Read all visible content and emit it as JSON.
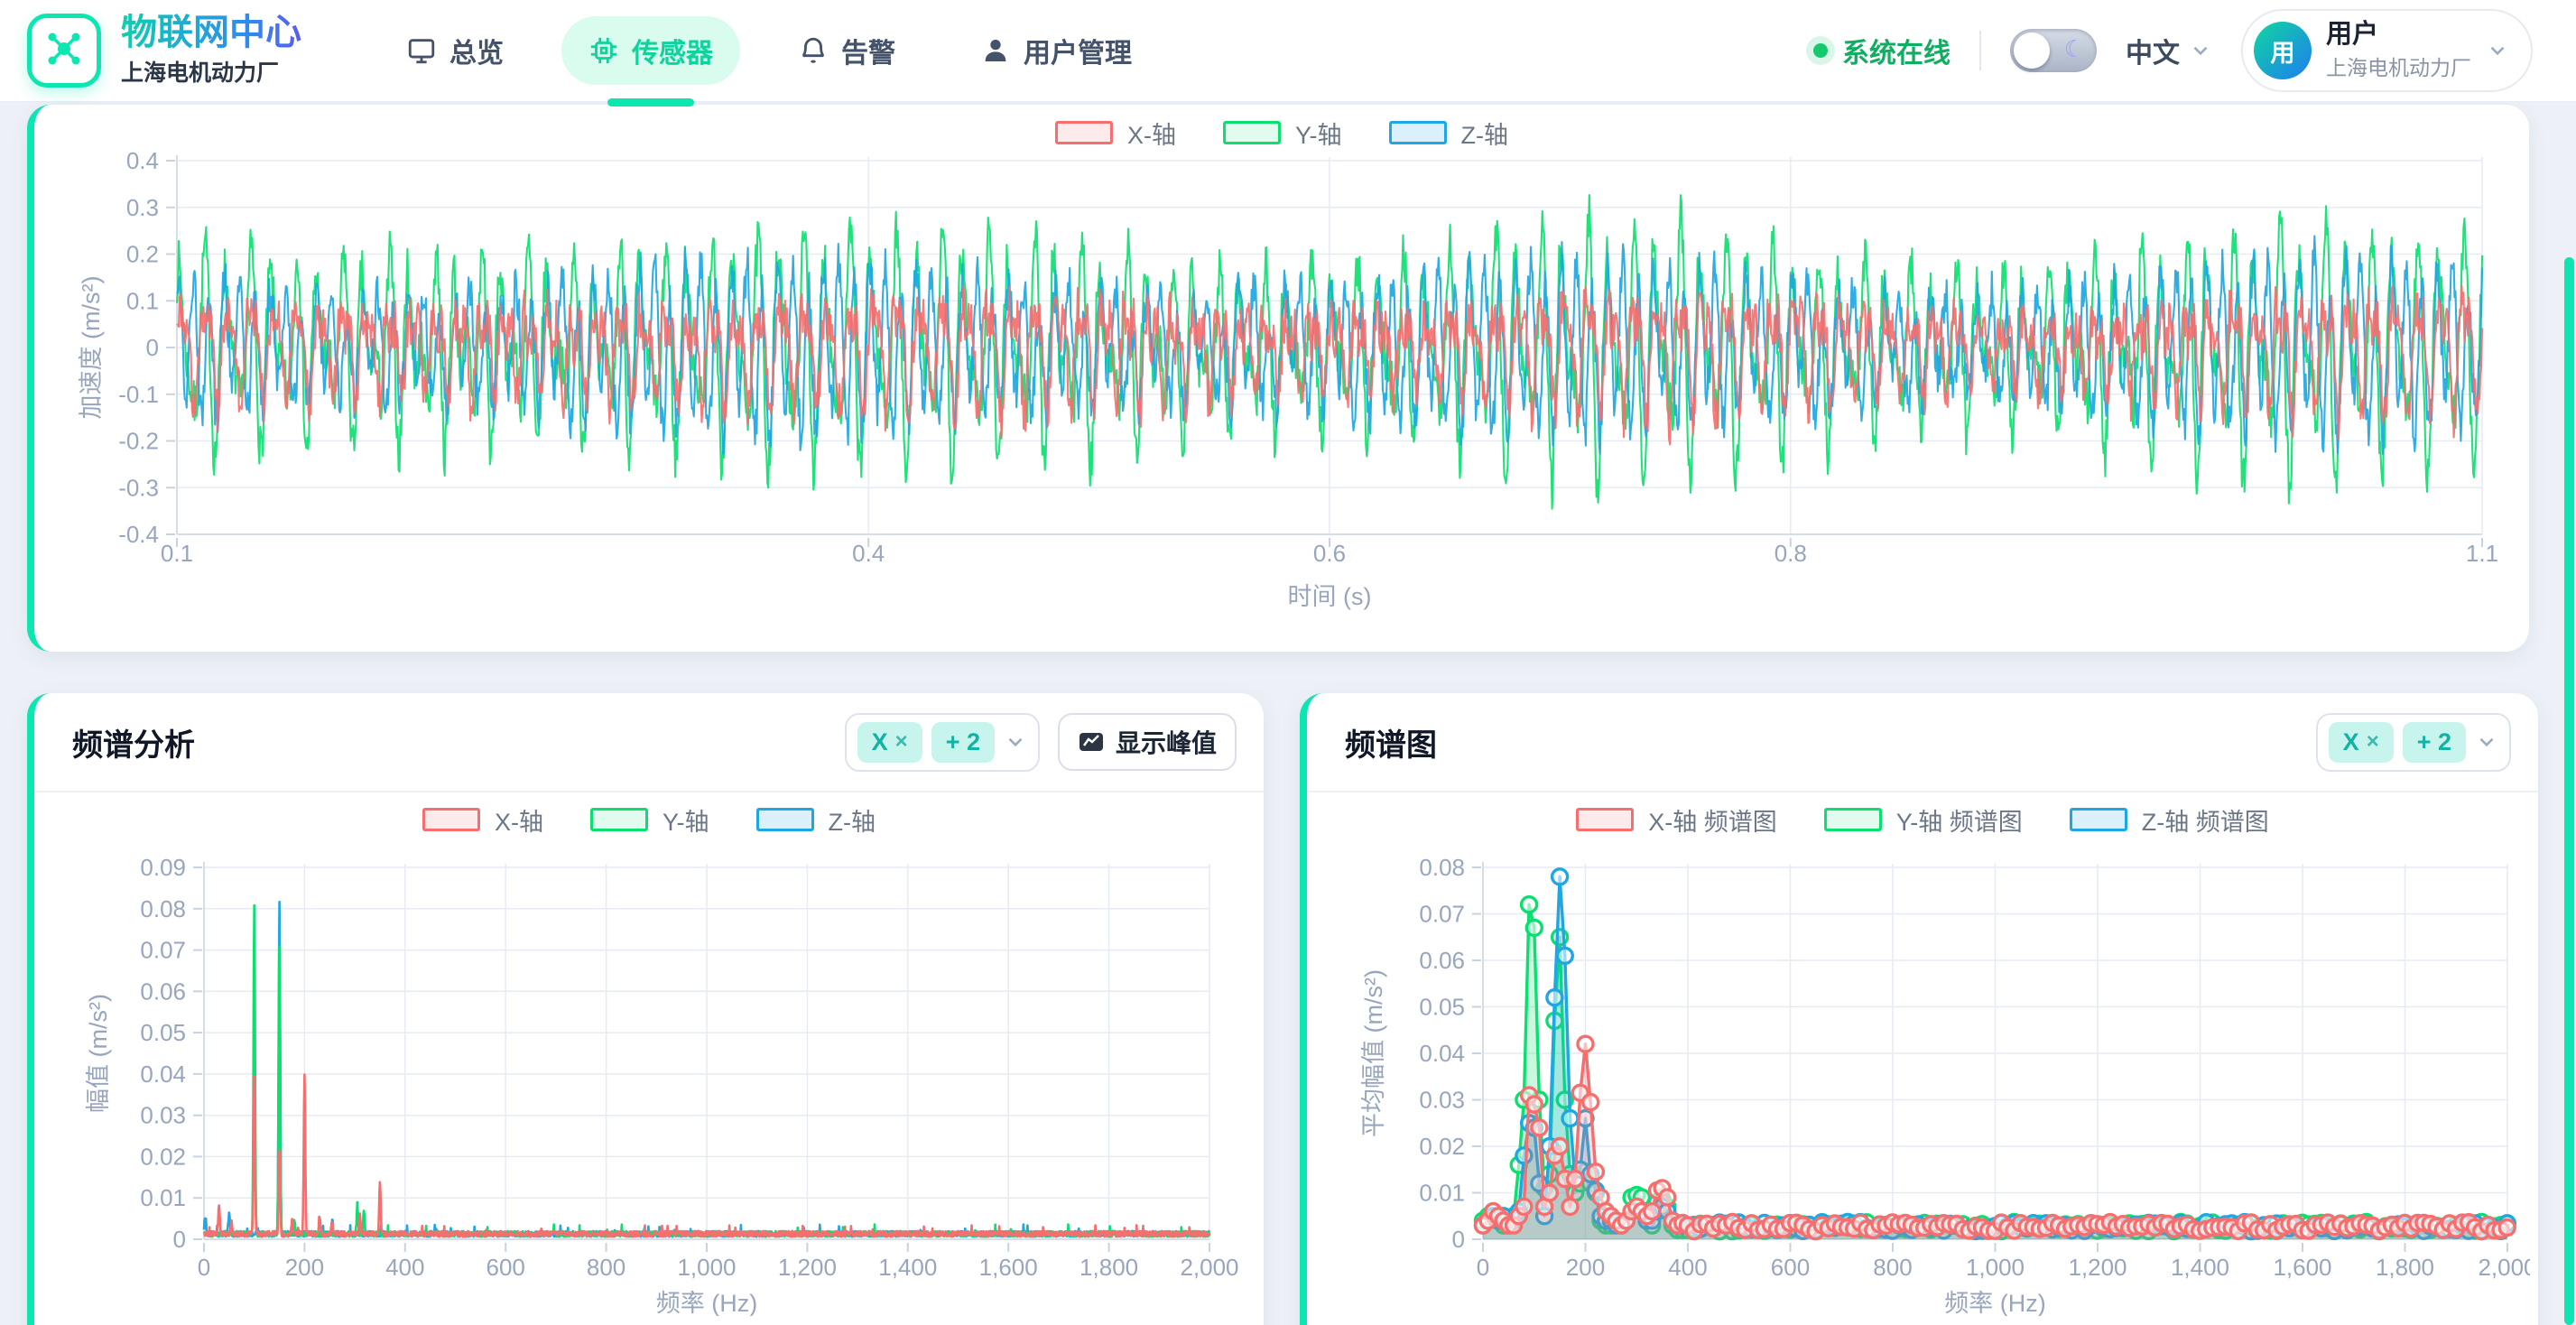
{
  "theme": {
    "accent": "#0ce7b2",
    "status_green": "#14c96e",
    "axis_text": "#98a6bd",
    "grid": "#e6ebf3",
    "axis_line": "#d5dde9"
  },
  "header": {
    "app_title": "物联网中心",
    "org": "上海电机动力厂",
    "nav": [
      {
        "label": "总览",
        "icon": "monitor-icon",
        "active": false
      },
      {
        "label": "传感器",
        "icon": "chip-icon",
        "active": true
      },
      {
        "label": "告警",
        "icon": "bell-icon",
        "active": false
      },
      {
        "label": "用户管理",
        "icon": "user-icon",
        "active": false
      }
    ],
    "status_label": "系统在线",
    "language_label": "中文",
    "user": {
      "name": "用户",
      "org": "上海电机动力厂",
      "avatar_text": "用"
    }
  },
  "cards": {
    "spectrum": {
      "title": "频谱分析",
      "selector": {
        "chip": "X",
        "remove_glyph": "×",
        "more": "+ 2"
      },
      "peak_button_label": "显示峰值"
    },
    "spectrogram": {
      "title": "频谱图",
      "selector": {
        "chip": "X",
        "remove_glyph": "×",
        "more": "+ 2"
      }
    }
  },
  "chart_data": [
    {
      "id": "waveform",
      "type": "line",
      "title": "",
      "xlabel": "时间 (s)",
      "ylabel": "加速度 (m/s²)",
      "xlim": [
        0.1,
        1.1
      ],
      "ylim": [
        -0.4,
        0.4
      ],
      "xticks": [
        0.1,
        0.4,
        0.6,
        0.8,
        1.1
      ],
      "yticks": [
        -0.4,
        -0.3,
        -0.2,
        -0.1,
        0,
        0.1,
        0.2,
        0.3,
        0.4
      ],
      "legend": [
        "X-轴",
        "Y-轴",
        "Z-轴"
      ],
      "legend_position": "top",
      "grid": true,
      "description": "dense tri-axial vibration waveform 0.1–1.1 s, synthesized from the sinusoidal components below",
      "series": [
        {
          "name": "X-轴",
          "color": "#f66e6e",
          "fill": "#fdeaea",
          "peak_abs": 0.22,
          "noise_amp": 0.05,
          "components": [
            {
              "freq_hz": 100,
              "amp": 0.1,
              "phase": 0.0
            },
            {
              "freq_hz": 200,
              "amp": 0.062,
              "phase": 1.3
            }
          ]
        },
        {
          "name": "Y-轴",
          "color": "#0bdf6f",
          "fill": "#e1fbee",
          "peak_abs": 0.37,
          "noise_amp": 0.055,
          "components": [
            {
              "freq_hz": 100,
              "amp": 0.19,
              "phase": 0.5
            },
            {
              "freq_hz": 150,
              "amp": 0.125,
              "phase": 2.0
            }
          ]
        },
        {
          "name": "Z-轴",
          "color": "#1ea7e2",
          "fill": "#daf1fb",
          "peak_abs": 0.29,
          "noise_amp": 0.05,
          "components": [
            {
              "freq_hz": 150,
              "amp": 0.165,
              "phase": 1.0
            },
            {
              "freq_hz": 50,
              "amp": 0.05,
              "phase": 0.3
            }
          ]
        }
      ]
    },
    {
      "id": "spectrum",
      "type": "line",
      "title": "",
      "xlabel": "频率 (Hz)",
      "ylabel": "幅值 (m/s²)",
      "xlim": [
        0,
        2000
      ],
      "ylim": [
        0,
        0.09
      ],
      "xticks": [
        0,
        200,
        400,
        600,
        800,
        1000,
        1200,
        1400,
        1600,
        1800,
        2000
      ],
      "yticks": [
        0,
        0.01,
        0.02,
        0.03,
        0.04,
        0.05,
        0.06,
        0.07,
        0.08,
        0.09
      ],
      "legend": [
        "X-轴",
        "Y-轴",
        "Z-轴"
      ],
      "legend_position": "top",
      "grid": true,
      "noise_floor": 0.0012,
      "series": [
        {
          "name": "X-轴",
          "color": "#f66e6e",
          "fill": "#fdeaea",
          "peaks": [
            [
              30,
              0.007
            ],
            [
              55,
              0.003
            ],
            [
              100,
              0.036
            ],
            [
              150,
              0.0195
            ],
            [
              175,
              0.003
            ],
            [
              200,
              0.0385
            ],
            [
              230,
              0.0045
            ],
            [
              255,
              0.003
            ],
            [
              310,
              0.0045
            ],
            [
              350,
              0.012
            ]
          ]
        },
        {
          "name": "Y-轴",
          "color": "#0bdf6f",
          "fill": "#e1fbee",
          "peaks": [
            [
              100,
              0.08
            ],
            [
              150,
              0.07
            ],
            [
              180,
              0.0035
            ],
            [
              305,
              0.007
            ],
            [
              318,
              0.0055
            ]
          ]
        },
        {
          "name": "Z-轴",
          "color": "#1ea7e2",
          "fill": "#daf1fb",
          "peaks": [
            [
              2,
              0.004
            ],
            [
              50,
              0.005
            ],
            [
              150,
              0.081
            ],
            [
              255,
              0.0035
            ],
            [
              460,
              0.002
            ]
          ]
        }
      ]
    },
    {
      "id": "spectrogram",
      "type": "area",
      "title": "",
      "xlabel": "频率 (Hz)",
      "ylabel": "平均幅值 (m/s²)",
      "xlim": [
        0,
        2000
      ],
      "ylim": [
        0,
        0.08
      ],
      "xticks": [
        0,
        200,
        400,
        600,
        800,
        1000,
        1200,
        1400,
        1600,
        1800,
        2000
      ],
      "yticks": [
        0,
        0.01,
        0.02,
        0.03,
        0.04,
        0.05,
        0.06,
        0.07,
        0.08
      ],
      "legend": [
        "X-轴 频谱图",
        "Y-轴 频谱图",
        "Z-轴 频谱图"
      ],
      "legend_position": "top",
      "grid": true,
      "tail": {
        "from": 412,
        "to": 2000,
        "step": 12.5,
        "base": 0.0017,
        "jitter": 0.002
      },
      "series": [
        {
          "name": "X-轴 频谱图",
          "color": "#f66e6e",
          "fill": "#fdeaea",
          "points": [
            [
              0,
              0.003
            ],
            [
              10,
              0.004
            ],
            [
              20,
              0.006
            ],
            [
              30,
              0.005
            ],
            [
              40,
              0.004
            ],
            [
              50,
              0.003
            ],
            [
              60,
              0.003
            ],
            [
              70,
              0.005
            ],
            [
              80,
              0.007
            ],
            [
              90,
              0.031
            ],
            [
              100,
              0.029
            ],
            [
              110,
              0.024
            ],
            [
              120,
              0.007
            ],
            [
              130,
              0.01
            ],
            [
              140,
              0.018
            ],
            [
              150,
              0.02
            ],
            [
              160,
              0.013
            ],
            [
              170,
              0.007
            ],
            [
              180,
              0.013
            ],
            [
              190,
              0.0315
            ],
            [
              200,
              0.042
            ],
            [
              210,
              0.0295
            ],
            [
              220,
              0.0145
            ],
            [
              230,
              0.009
            ],
            [
              240,
              0.006
            ],
            [
              250,
              0.005
            ],
            [
              260,
              0.004
            ],
            [
              270,
              0.003
            ],
            [
              280,
              0.004
            ],
            [
              290,
              0.006
            ],
            [
              300,
              0.007
            ],
            [
              310,
              0.006
            ],
            [
              320,
              0.005
            ],
            [
              330,
              0.006
            ],
            [
              340,
              0.0105
            ],
            [
              350,
              0.011
            ],
            [
              360,
              0.009
            ],
            [
              370,
              0.004
            ],
            [
              380,
              0.003
            ],
            [
              390,
              0.0035
            ],
            [
              400,
              0.003
            ]
          ]
        },
        {
          "name": "Y-轴 频谱图",
          "color": "#0bdf6f",
          "fill": "#e1fbee",
          "points": [
            [
              0,
              0.004
            ],
            [
              10,
              0.005
            ],
            [
              20,
              0.006
            ],
            [
              30,
              0.004
            ],
            [
              40,
              0.003
            ],
            [
              50,
              0.004
            ],
            [
              60,
              0.005
            ],
            [
              70,
              0.016
            ],
            [
              80,
              0.03
            ],
            [
              90,
              0.072
            ],
            [
              100,
              0.067
            ],
            [
              110,
              0.03
            ],
            [
              120,
              0.011
            ],
            [
              130,
              0.014
            ],
            [
              140,
              0.047
            ],
            [
              150,
              0.065
            ],
            [
              160,
              0.03
            ],
            [
              170,
              0.014
            ],
            [
              180,
              0.01
            ],
            [
              190,
              0.012
            ],
            [
              200,
              0.0145
            ],
            [
              210,
              0.012
            ],
            [
              220,
              0.01
            ],
            [
              230,
              0.004
            ],
            [
              240,
              0.003
            ],
            [
              250,
              0.003
            ],
            [
              260,
              0.004
            ],
            [
              270,
              0.003
            ],
            [
              280,
              0.004
            ],
            [
              290,
              0.009
            ],
            [
              300,
              0.0095
            ],
            [
              310,
              0.009
            ],
            [
              320,
              0.004
            ],
            [
              330,
              0.003
            ],
            [
              340,
              0.008
            ],
            [
              350,
              0.0085
            ],
            [
              360,
              0.007
            ],
            [
              370,
              0.003
            ],
            [
              380,
              0.002
            ],
            [
              390,
              0.002
            ],
            [
              400,
              0.002
            ]
          ]
        },
        {
          "name": "Z-轴 频谱图",
          "color": "#1ea7e2",
          "fill": "#daf1fb",
          "points": [
            [
              0,
              0.003
            ],
            [
              10,
              0.004
            ],
            [
              20,
              0.005
            ],
            [
              30,
              0.004
            ],
            [
              40,
              0.005
            ],
            [
              50,
              0.003
            ],
            [
              60,
              0.004
            ],
            [
              70,
              0.006
            ],
            [
              80,
              0.018
            ],
            [
              90,
              0.025
            ],
            [
              100,
              0.024
            ],
            [
              110,
              0.012
            ],
            [
              120,
              0.005
            ],
            [
              130,
              0.02
            ],
            [
              140,
              0.052
            ],
            [
              150,
              0.078
            ],
            [
              160,
              0.061
            ],
            [
              170,
              0.026
            ],
            [
              180,
              0.013
            ],
            [
              190,
              0.015
            ],
            [
              200,
              0.026
            ],
            [
              210,
              0.014
            ],
            [
              220,
              0.0105
            ],
            [
              230,
              0.005
            ],
            [
              240,
              0.004
            ],
            [
              250,
              0.004
            ],
            [
              260,
              0.003
            ],
            [
              270,
              0.003
            ],
            [
              280,
              0.004
            ],
            [
              290,
              0.006
            ],
            [
              300,
              0.007
            ],
            [
              310,
              0.006
            ],
            [
              320,
              0.004
            ],
            [
              330,
              0.004
            ],
            [
              340,
              0.006
            ],
            [
              350,
              0.007
            ],
            [
              360,
              0.006
            ],
            [
              370,
              0.004
            ],
            [
              380,
              0.003
            ],
            [
              390,
              0.003
            ],
            [
              400,
              0.003
            ]
          ]
        }
      ]
    }
  ]
}
